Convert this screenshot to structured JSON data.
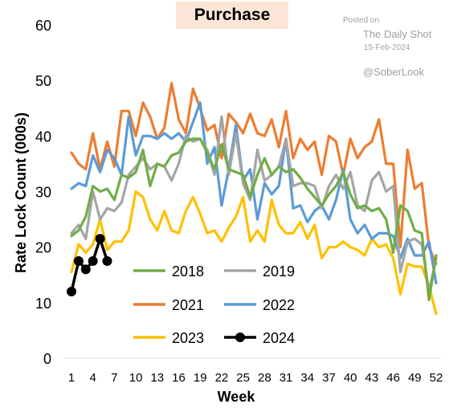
{
  "watermark": {
    "line1": "Posted on",
    "line2": "The Daily Shot",
    "line3": "15-Feb-2024",
    "line4": "@SoberLook"
  },
  "chart_data": {
    "type": "line",
    "title": "Purchase",
    "xlabel": "Week",
    "ylabel": "Rate Lock Count (000s)",
    "xlim": [
      1,
      52
    ],
    "ylim": [
      0,
      60
    ],
    "x_ticks": [
      1,
      4,
      7,
      10,
      13,
      16,
      19,
      22,
      25,
      28,
      31,
      34,
      37,
      40,
      43,
      46,
      49,
      52
    ],
    "y_ticks": [
      0,
      10,
      20,
      30,
      40,
      50,
      60
    ],
    "grid": false,
    "legend_position": "bottom-center",
    "series": [
      {
        "name": "2018",
        "color": "#70ad47",
        "x": [
          1,
          2,
          3,
          4,
          5,
          6,
          7,
          8,
          9,
          10,
          11,
          12,
          13,
          14,
          15,
          16,
          17,
          18,
          19,
          20,
          21,
          22,
          23,
          24,
          25,
          26,
          27,
          28,
          29,
          30,
          31,
          32,
          33,
          34,
          35,
          36,
          37,
          38,
          39,
          40,
          41,
          42,
          43,
          44,
          45,
          46,
          47,
          48,
          49,
          50,
          51,
          52
        ],
        "values": [
          22,
          23,
          25.5,
          31,
          30,
          30.5,
          28.5,
          33,
          32.5,
          33.5,
          37.5,
          31,
          35,
          34.5,
          36.5,
          37,
          39,
          39.5,
          39.5,
          37,
          34,
          38.5,
          34,
          33.5,
          33,
          29,
          33,
          36,
          33,
          34.5,
          33.5,
          34,
          32.5,
          30.5,
          29,
          27.5,
          29.5,
          31,
          33.5,
          29.5,
          27,
          27.5,
          26.5,
          27,
          25,
          19,
          27.5,
          26.5,
          23,
          22.5,
          10.5,
          18.5
        ]
      },
      {
        "name": "2019",
        "color": "#a5a5a5",
        "x": [
          1,
          2,
          3,
          4,
          5,
          6,
          7,
          8,
          9,
          10,
          11,
          12,
          13,
          14,
          15,
          16,
          17,
          18,
          19,
          20,
          21,
          22,
          23,
          24,
          25,
          26,
          27,
          28,
          29,
          30,
          31,
          32,
          33,
          34,
          35,
          36,
          37,
          38,
          39,
          40,
          41,
          42,
          43,
          44,
          45,
          46,
          47,
          48,
          49,
          50,
          51,
          52
        ],
        "values": [
          22.5,
          24,
          21.5,
          30,
          25,
          27,
          26.5,
          28,
          33,
          34.5,
          36,
          34,
          35,
          34.5,
          32,
          35,
          40,
          39,
          39.5,
          37.5,
          33,
          43.5,
          33,
          40.5,
          31.5,
          28.5,
          37.5,
          32,
          33,
          34.5,
          39.5,
          31,
          31.5,
          31.5,
          31,
          27,
          31,
          33,
          30.5,
          33.5,
          27.5,
          26.5,
          32,
          33.5,
          30,
          31,
          15.5,
          21,
          21.5,
          20.5,
          12,
          18
        ]
      },
      {
        "name": "2021",
        "color": "#ed7d31",
        "x": [
          1,
          2,
          3,
          4,
          5,
          6,
          7,
          8,
          9,
          10,
          11,
          12,
          13,
          14,
          15,
          16,
          17,
          18,
          19,
          20,
          21,
          22,
          23,
          24,
          25,
          26,
          27,
          28,
          29,
          30,
          31,
          32,
          33,
          34,
          35,
          36,
          37,
          38,
          39,
          40,
          41,
          42,
          43,
          44,
          45,
          46,
          47,
          48,
          49,
          50,
          51,
          52
        ],
        "values": [
          37,
          35,
          34,
          40.5,
          34,
          39,
          34.5,
          44.5,
          44.5,
          40,
          46,
          43.5,
          39.5,
          41.5,
          49.5,
          43,
          40.5,
          48.5,
          45,
          41,
          42,
          36,
          44,
          42.5,
          40.5,
          44,
          40.5,
          40,
          43,
          38,
          44.5,
          36,
          39.5,
          37.5,
          39,
          33,
          40,
          39,
          33,
          39.5,
          36,
          38,
          39,
          43,
          35,
          35,
          20,
          37.5,
          30.5,
          31.5,
          20,
          17
        ]
      },
      {
        "name": "2022",
        "color": "#5b9bd5",
        "x": [
          1,
          2,
          3,
          4,
          5,
          6,
          7,
          8,
          9,
          10,
          11,
          12,
          13,
          14,
          15,
          16,
          17,
          18,
          19,
          20,
          21,
          22,
          23,
          24,
          25,
          26,
          27,
          28,
          29,
          30,
          31,
          32,
          33,
          34,
          35,
          36,
          37,
          38,
          39,
          40,
          41,
          42,
          43,
          44,
          45,
          46,
          47,
          48,
          49,
          50,
          51,
          52
        ],
        "values": [
          30.5,
          31.5,
          31,
          36.5,
          33.5,
          37.5,
          36,
          33,
          43.5,
          36.5,
          40,
          40,
          39.5,
          40.5,
          39.5,
          40.5,
          39,
          42.5,
          46,
          35,
          38,
          27.5,
          34,
          42,
          32,
          34,
          25,
          31.5,
          29.5,
          31,
          39.5,
          27,
          27.5,
          24.5,
          26.5,
          27.5,
          25,
          28.5,
          34,
          25,
          22.5,
          24,
          21.5,
          22.5,
          22.5,
          22,
          18,
          21.5,
          18.5,
          18.5,
          21,
          13.5
        ]
      },
      {
        "name": "2023",
        "color": "#ffc000",
        "x": [
          1,
          2,
          3,
          4,
          5,
          6,
          7,
          8,
          9,
          10,
          11,
          12,
          13,
          14,
          15,
          16,
          17,
          18,
          19,
          20,
          21,
          22,
          23,
          24,
          25,
          26,
          27,
          28,
          29,
          30,
          31,
          32,
          33,
          34,
          35,
          36,
          37,
          38,
          39,
          40,
          41,
          42,
          43,
          44,
          45,
          46,
          47,
          48,
          49,
          50,
          51,
          52
        ],
        "values": [
          15.5,
          20.5,
          19,
          20.5,
          25,
          19.5,
          21,
          21,
          23,
          30,
          29,
          25,
          23,
          26.5,
          23,
          22.5,
          26.5,
          29,
          26,
          22.5,
          23,
          21,
          23.5,
          25.5,
          29,
          21,
          23,
          21,
          28.5,
          24,
          22.5,
          22.5,
          24.5,
          21.5,
          24,
          18,
          20,
          20,
          21,
          20,
          19.5,
          18.5,
          21.5,
          20,
          20.5,
          18,
          11.5,
          17,
          16.5,
          16.5,
          13,
          8
        ]
      },
      {
        "name": "2024",
        "color": "#000000",
        "markers": true,
        "x": [
          1,
          2,
          3,
          4,
          5,
          6
        ],
        "values": [
          12,
          17.5,
          16,
          17.5,
          21.5,
          17.5
        ]
      }
    ]
  }
}
